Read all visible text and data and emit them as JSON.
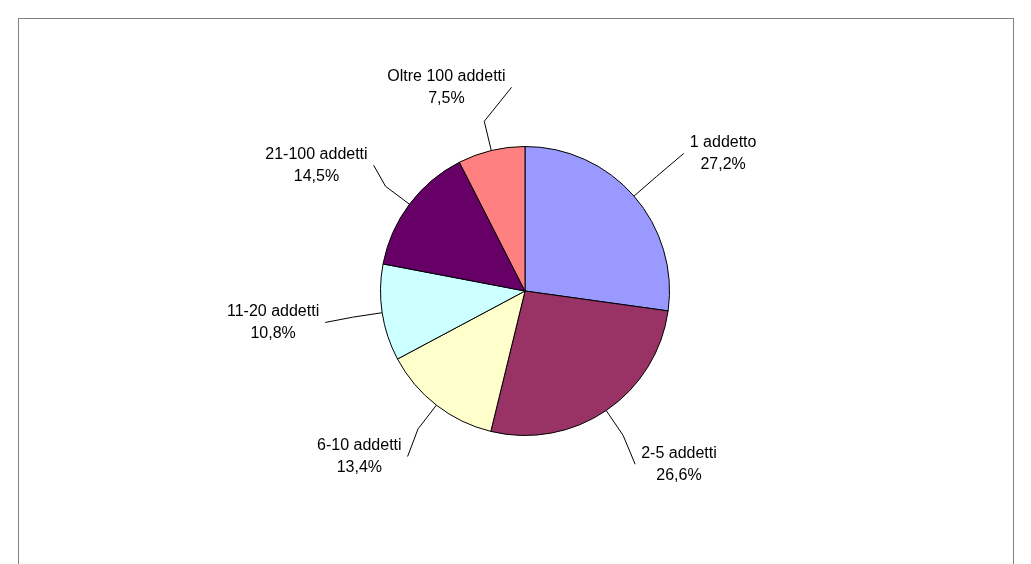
{
  "chart_data": {
    "type": "pie",
    "categories": [
      "1 addetto",
      "2-5 addetti",
      "6-10 addetti",
      "11-20 addetti",
      "21-100 addetti",
      "Oltre 100 addetti"
    ],
    "values": [
      27.2,
      26.6,
      13.4,
      10.8,
      14.5,
      7.5
    ],
    "value_labels": [
      "27,2%",
      "26,6%",
      "13,4%",
      "10,8%",
      "14,5%",
      "7,5%"
    ],
    "colors": [
      "#9999ff",
      "#993366",
      "#ffffcc",
      "#ccffff",
      "#660066",
      "#ff8080"
    ]
  }
}
